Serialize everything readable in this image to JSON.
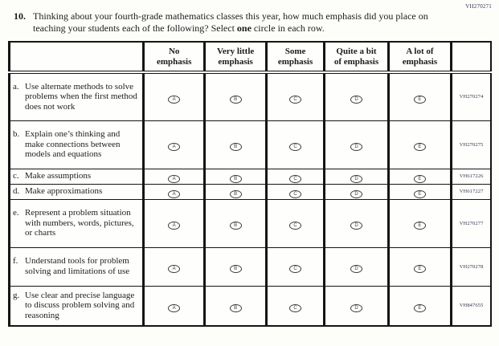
{
  "page": {
    "corner_code": "VH270271"
  },
  "question": {
    "number": "10.",
    "text_before_bold": "Thinking about your fourth-grade mathematics classes this year, how much emphasis did you place on teaching your students each of the following? Select ",
    "bold_word": "one",
    "text_after_bold": " circle in each row."
  },
  "table": {
    "columns": [
      {
        "line1": "No",
        "line2": "emphasis"
      },
      {
        "line1": "Very little",
        "line2": "emphasis"
      },
      {
        "line1": "Some",
        "line2": "emphasis"
      },
      {
        "line1": "Quite a bit",
        "line2": "of emphasis"
      },
      {
        "line1": "A lot of",
        "line2": "emphasis"
      }
    ],
    "option_letters": [
      "A",
      "B",
      "C",
      "D",
      "E"
    ],
    "rows": [
      {
        "letter": "a.",
        "text": "Use alternate methods to solve problems when the first method does not work",
        "code": "VH270274"
      },
      {
        "letter": "b.",
        "text": "Explain one’s thinking and make connections between models and equations",
        "code": "VH270275"
      },
      {
        "letter": "c.",
        "text": "Make assumptions",
        "code": "VH617226"
      },
      {
        "letter": "d.",
        "text": "Make approximations",
        "code": "VH617227"
      },
      {
        "letter": "e.",
        "text": "Represent a problem situation with numbers, words, pictures, or charts",
        "code": "VH270277"
      },
      {
        "letter": "f.",
        "text": "Understand tools for problem solving and limitations of use",
        "code": "VH270278"
      },
      {
        "letter": "g.",
        "text": "Use clear and precise language to discuss problem solving and reasoning",
        "code": "VH847655"
      }
    ]
  }
}
